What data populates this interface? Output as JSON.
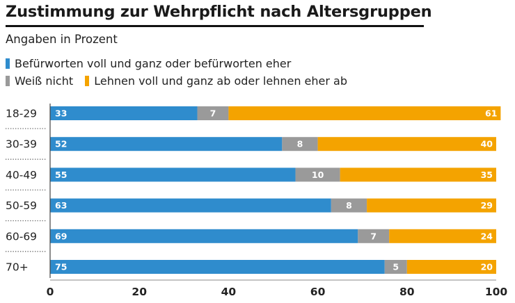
{
  "chart_data": {
    "type": "bar",
    "orientation": "horizontal",
    "stacked": true,
    "title": "Zustimmung zur Wehrpflicht nach Altersgruppen",
    "subtitle": "Angaben in Prozent",
    "categories": [
      "18-29",
      "30-39",
      "40-49",
      "50-59",
      "60-69",
      "70+"
    ],
    "series": [
      {
        "name": "Befürworten voll und ganz oder befürworten eher",
        "color": "#2f8ccd",
        "values": [
          33,
          52,
          55,
          63,
          69,
          75
        ]
      },
      {
        "name": "Weiß nicht",
        "color": "#9a9a9a",
        "values": [
          7,
          8,
          10,
          8,
          7,
          5
        ]
      },
      {
        "name": "Lehnen voll und ganz ab oder lehnen eher ab",
        "color": "#f4a300",
        "values": [
          61,
          40,
          35,
          29,
          24,
          20
        ]
      }
    ],
    "xlim": [
      0,
      100
    ],
    "xticks": [
      "0",
      "20",
      "40",
      "60",
      "80",
      "100"
    ],
    "xlabel": "",
    "ylabel": "",
    "grid": false,
    "legend": "top-left"
  }
}
